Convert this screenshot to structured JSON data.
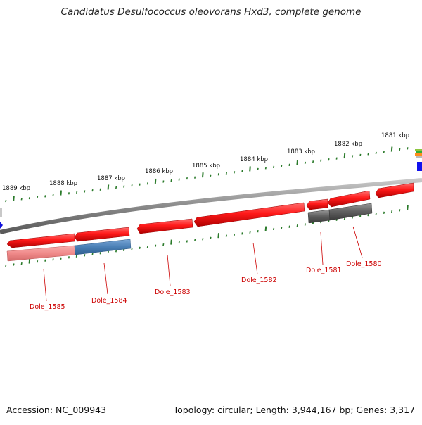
{
  "title": "Candidatus Desulfococcus oleovorans Hxd3, complete genome",
  "footer": {
    "accession": "Accession: NC_009943",
    "summary": "Topology: circular; Length: 3,944,167 bp; Genes: 3,317"
  },
  "ruler": {
    "labels": [
      "1889 kbp",
      "1888 kbp",
      "1887 kbp",
      "1886 kbp",
      "1885 kbp",
      "1884 kbp",
      "1883 kbp",
      "1882 kbp",
      "1881 kbp"
    ]
  },
  "genes": [
    "Dole_1585",
    "Dole_1584",
    "Dole_1583",
    "Dole_1582",
    "Dole_1581",
    "Dole_1580"
  ],
  "colors": {
    "gene_forward": "#ee1111",
    "gene_faded": "#f08080",
    "gene_blue": "#4a7fb5",
    "gene_gray": "#555555",
    "backbone": "#888888",
    "tick": "#2a7a2a",
    "label": "#cc0000"
  }
}
